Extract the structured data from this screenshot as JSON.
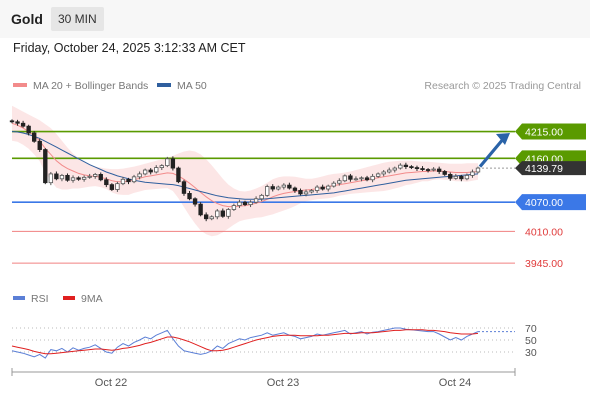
{
  "header": {
    "title": "Gold",
    "timeframe": "30 MIN"
  },
  "datetime": "Friday, October 24, 2025 3:12:33 AM CET",
  "legend": {
    "main": [
      {
        "label": "MA 20 + Bollinger Bands",
        "color": "#f28b8b"
      },
      {
        "label": "MA 50",
        "color": "#2f5f9e"
      }
    ],
    "rsi": [
      {
        "label": "RSI",
        "color": "#5b7fd6"
      },
      {
        "label": "9MA",
        "color": "#e02020"
      }
    ]
  },
  "copyright": "Research © 2025 Trading Central",
  "colors": {
    "up_candle": "#555555",
    "down_candle": "#222222",
    "resistance": "#5a9a00",
    "pivot": "#3b78e7",
    "support": "#f08080",
    "arrow": "#2a63a8"
  },
  "chart_data": [
    {
      "type": "candlestick",
      "ylim": [
        3900,
        4290
      ],
      "x_ticks": [
        "Oct 22",
        "Oct 23",
        "Oct 24"
      ],
      "levels": [
        {
          "label": "4215.00",
          "value": 4215,
          "kind": "resistance"
        },
        {
          "label": "4160.00",
          "value": 4160,
          "kind": "resistance"
        },
        {
          "label": "4070.00",
          "value": 4070,
          "kind": "pivot"
        },
        {
          "label": "4010.00",
          "value": 4010,
          "kind": "support"
        },
        {
          "label": "3945.00",
          "value": 3945,
          "kind": "support"
        }
      ],
      "last_price": {
        "label": "4139.79",
        "value": 4139.79
      },
      "close": [
        4235,
        4232,
        4226,
        4212,
        4195,
        4178,
        4110,
        4128,
        4118,
        4125,
        4115,
        4120,
        4117,
        4121,
        4123,
        4127,
        4116,
        4106,
        4096,
        4108,
        4117,
        4112,
        4122,
        4128,
        4136,
        4132,
        4141,
        4145,
        4159,
        4140,
        4112,
        4088,
        4077,
        4066,
        4044,
        4036,
        4040,
        4052,
        4041,
        4055,
        4063,
        4070,
        4065,
        4070,
        4077,
        4084,
        4102,
        4097,
        4101,
        4105,
        4099,
        4094,
        4087,
        4091,
        4094,
        4101,
        4097,
        4103,
        4109,
        4114,
        4124,
        4117,
        4118,
        4120,
        4116,
        4123,
        4128,
        4132,
        4136,
        4140,
        4146,
        4143,
        4141,
        4139,
        4137,
        4136,
        4138,
        4133,
        4127,
        4119,
        4123,
        4118,
        4125,
        4132,
        4140
      ],
      "ma20": [
        4232,
        4228,
        4222,
        4215,
        4206,
        4196,
        4180,
        4168,
        4155,
        4146,
        4139,
        4134,
        4129,
        4126,
        4124,
        4123,
        4121,
        4118,
        4114,
        4112,
        4112,
        4113,
        4116,
        4119,
        4122,
        4124,
        4126,
        4128,
        4130,
        4129,
        4124,
        4117,
        4109,
        4100,
        4090,
        4081,
        4073,
        4067,
        4063,
        4061,
        4061,
        4062,
        4063,
        4065,
        4068,
        4071,
        4076,
        4081,
        4085,
        4088,
        4090,
        4092,
        4094,
        4095,
        4096,
        4098,
        4100,
        4102,
        4104,
        4106,
        4108,
        4110,
        4112,
        4114,
        4116,
        4118,
        4120,
        4122,
        4124,
        4126,
        4128,
        4130,
        4131,
        4132,
        4133,
        4133,
        4134,
        4134,
        4133,
        4132,
        4131,
        4131,
        4131,
        4132,
        4133
      ],
      "bollinger_upper": [
        4268,
        4262,
        4256,
        4250,
        4244,
        4238,
        4230,
        4222,
        4210,
        4196,
        4182,
        4170,
        4160,
        4152,
        4146,
        4143,
        4141,
        4139,
        4138,
        4138,
        4139,
        4141,
        4143,
        4146,
        4149,
        4152,
        4155,
        4158,
        4161,
        4165,
        4170,
        4174,
        4176,
        4174,
        4168,
        4158,
        4146,
        4132,
        4118,
        4106,
        4098,
        4093,
        4092,
        4094,
        4098,
        4103,
        4110,
        4117,
        4121,
        4123,
        4123,
        4122,
        4120,
        4118,
        4118,
        4120,
        4123,
        4126,
        4128,
        4129,
        4131,
        4133,
        4136,
        4139,
        4142,
        4145,
        4148,
        4151,
        4153,
        4154,
        4155,
        4155,
        4155,
        4154,
        4153,
        4153,
        4152,
        4151,
        4150,
        4149,
        4149,
        4149,
        4150,
        4150,
        4150
      ],
      "bollinger_lower": [
        4196,
        4194,
        4188,
        4180,
        4168,
        4154,
        4130,
        4114,
        4100,
        4096,
        4096,
        4098,
        4098,
        4100,
        4102,
        4103,
        4101,
        4097,
        4090,
        4086,
        4085,
        4085,
        4089,
        4092,
        4095,
        4096,
        4097,
        4098,
        4099,
        4093,
        4078,
        4060,
        4042,
        4026,
        4012,
        4004,
        4000,
        4002,
        4008,
        4016,
        4024,
        4031,
        4034,
        4036,
        4038,
        4039,
        4042,
        4045,
        4049,
        4053,
        4057,
        4062,
        4068,
        4072,
        4074,
        4076,
        4077,
        4078,
        4080,
        4083,
        4085,
        4087,
        4088,
        4089,
        4090,
        4091,
        4092,
        4093,
        4095,
        4098,
        4101,
        4105,
        4107,
        4110,
        4113,
        4113,
        4116,
        4117,
        4116,
        4115,
        4113,
        4113,
        4112,
        4114,
        4116
      ],
      "ma50": [
        4215,
        4214,
        4212,
        4209,
        4205,
        4201,
        4195,
        4189,
        4183,
        4177,
        4171,
        4165,
        4159,
        4153,
        4147,
        4142,
        4137,
        4132,
        4128,
        4124,
        4121,
        4118,
        4115,
        4113,
        4111,
        4110,
        4109,
        4108,
        4107,
        4106,
        4104,
        4101,
        4098,
        4095,
        4092,
        4089,
        4086,
        4083,
        4081,
        4079,
        4078,
        4077,
        4076,
        4076,
        4076,
        4076,
        4077,
        4078,
        4079,
        4080,
        4081,
        4082,
        4083,
        4084,
        4085,
        4086,
        4087,
        4088,
        4089,
        4091,
        4093,
        4095,
        4097,
        4099,
        4101,
        4103,
        4105,
        4107,
        4109,
        4111,
        4113,
        4115,
        4116,
        4117,
        4118,
        4119,
        4120,
        4121,
        4122,
        4123,
        4124,
        4125,
        4126,
        4127,
        4128
      ],
      "projection_arrow": {
        "from": 4143,
        "to": 4212
      }
    },
    {
      "type": "line",
      "name": "RSI",
      "ylim": [
        10,
        90
      ],
      "y_ticks": [
        70,
        50,
        30
      ],
      "rsi": [
        32,
        30,
        28,
        25,
        22,
        26,
        20,
        34,
        32,
        36,
        30,
        37,
        33,
        36,
        38,
        42,
        36,
        30,
        28,
        38,
        44,
        40,
        46,
        50,
        55,
        52,
        58,
        62,
        66,
        52,
        40,
        32,
        30,
        28,
        26,
        28,
        32,
        40,
        36,
        44,
        48,
        52,
        50,
        54,
        56,
        58,
        62,
        58,
        60,
        62,
        58,
        56,
        52,
        54,
        56,
        60,
        58,
        60,
        62,
        64,
        66,
        60,
        62,
        64,
        60,
        63,
        64,
        66,
        68,
        70,
        70,
        68,
        67,
        66,
        65,
        64,
        64,
        60,
        55,
        50,
        54,
        50,
        56,
        60,
        64
      ],
      "rsi_ma": [
        40,
        38,
        36,
        34,
        31,
        29,
        27,
        27,
        28,
        29,
        30,
        31,
        32,
        33,
        34,
        35,
        35,
        34,
        33,
        34,
        36,
        37,
        39,
        41,
        44,
        46,
        49,
        52,
        55,
        55,
        53,
        50,
        47,
        43,
        39,
        35,
        32,
        32,
        33,
        35,
        38,
        41,
        44,
        47,
        50,
        52,
        54,
        56,
        57,
        58,
        58,
        58,
        57,
        57,
        57,
        57,
        58,
        58,
        59,
        60,
        61,
        61,
        61,
        62,
        62,
        62,
        63,
        64,
        65,
        66,
        66,
        67,
        67,
        67,
        67,
        66,
        66,
        65,
        64,
        62,
        61,
        60,
        60,
        60,
        61
      ]
    }
  ]
}
